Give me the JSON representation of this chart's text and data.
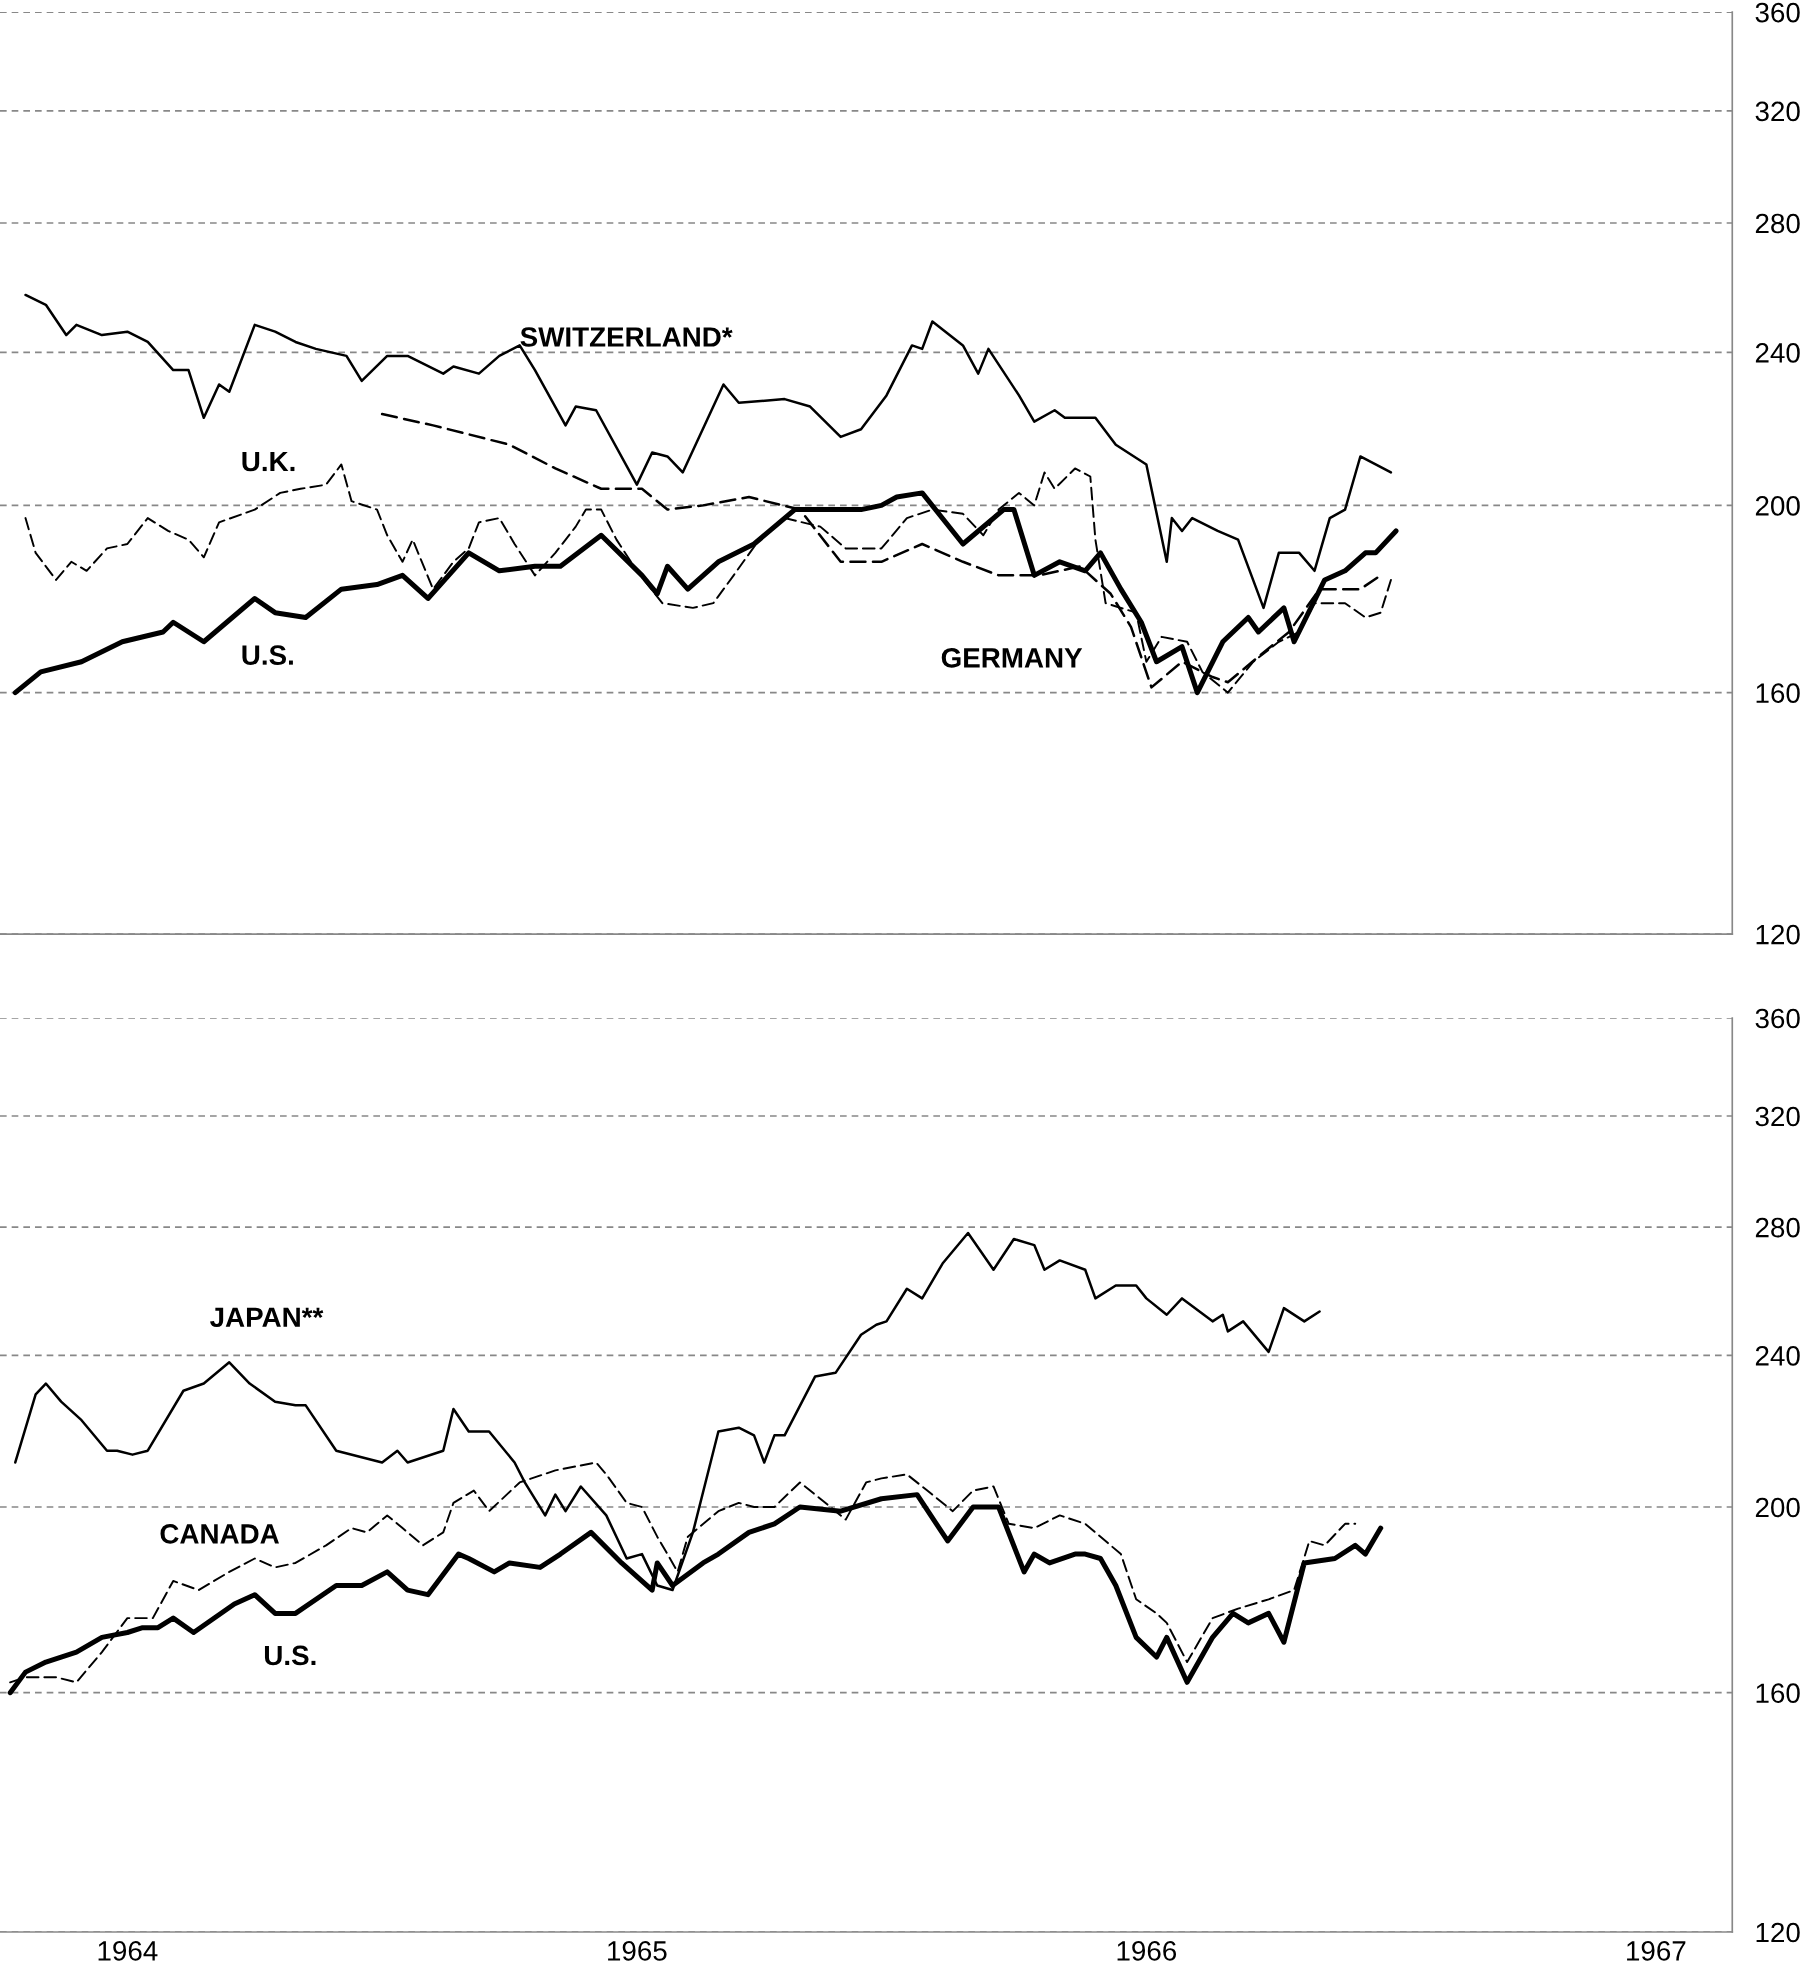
{
  "chart_data": [
    {
      "type": "line",
      "log": "y",
      "grid": "y",
      "tick_labels": "y",
      "xlim": [
        1963.75,
        1967.15
      ],
      "xticks": [
        1964,
        1965,
        1966,
        1967
      ],
      "ylim": [
        120,
        360
      ],
      "yticks": [
        120,
        160,
        200,
        240,
        280,
        320,
        360
      ],
      "series": [
        {
          "name": "SWITZERLAND*",
          "color": "#000000",
          "line_style": "solid",
          "x": [
            1963.8,
            1963.84,
            1963.88,
            1963.9,
            1963.95,
            1964.0,
            1964.04,
            1964.09,
            1964.12,
            1964.15,
            1964.18,
            1964.2,
            1964.25,
            1964.29,
            1964.33,
            1964.37,
            1964.43,
            1964.46,
            1964.51,
            1964.55,
            1964.62,
            1964.64,
            1964.69,
            1964.73,
            1964.77,
            1964.8,
            1964.86,
            1964.88,
            1964.92,
            1965.0,
            1965.03,
            1965.06,
            1965.09,
            1965.17,
            1965.2,
            1965.29,
            1965.34,
            1965.4,
            1965.44,
            1965.49,
            1965.54,
            1965.56,
            1965.58,
            1965.64,
            1965.67,
            1965.69,
            1965.75,
            1965.78,
            1965.82,
            1965.84,
            1965.9,
            1965.94,
            1966.0,
            1966.04,
            1966.05,
            1966.07,
            1966.09,
            1966.14,
            1966.18,
            1966.23,
            1966.26,
            1966.3,
            1966.33,
            1966.36,
            1966.39,
            1966.42,
            1966.45,
            1966.48
          ],
          "values": [
            257,
            254,
            245,
            248,
            245,
            246,
            243,
            235,
            235,
            222,
            231,
            229,
            248,
            246,
            243,
            241,
            239,
            232,
            239,
            239,
            234,
            236,
            234,
            239,
            242,
            235,
            220,
            225,
            224,
            205,
            213,
            212,
            208,
            231,
            226,
            227,
            225,
            217,
            219,
            228,
            242,
            241,
            249,
            242,
            234,
            241,
            228,
            221,
            224,
            222,
            222,
            215,
            210,
            187,
            197,
            194,
            197,
            194,
            192,
            177,
            189,
            189,
            185,
            197,
            199,
            212,
            210,
            208
          ]
        },
        {
          "name": "U.K.",
          "color": "#000000",
          "line_style": "dashed",
          "x": [
            1963.8,
            1963.82,
            1963.86,
            1963.89,
            1963.92,
            1963.96,
            1964.0,
            1964.04,
            1964.08,
            1964.12,
            1964.15,
            1964.18,
            1964.25,
            1964.3,
            1964.34,
            1964.39,
            1964.42,
            1964.44,
            1964.49,
            1964.51,
            1964.54,
            1964.56,
            1964.6,
            1964.64,
            1964.67,
            1964.69,
            1964.73,
            1964.76,
            1964.8,
            1964.84,
            1964.88,
            1964.9,
            1964.93,
            1964.96,
            1965.0,
            1965.05,
            1965.11,
            1965.15,
            1965.19,
            1965.24,
            1965.29,
            1965.36,
            1965.41,
            1965.48,
            1965.53,
            1965.58,
            1965.64,
            1965.68,
            1965.71,
            1965.75,
            1965.78,
            1965.8,
            1965.82,
            1965.86,
            1965.89,
            1965.9,
            1965.92,
            1965.98,
            1966.0,
            1966.03,
            1966.08,
            1966.11,
            1966.16,
            1966.21,
            1966.26,
            1966.3,
            1966.33,
            1966.39,
            1966.43,
            1966.46,
            1966.48
          ],
          "values": [
            197,
            189,
            183,
            187,
            185,
            190,
            191,
            197,
            194,
            192,
            188,
            196,
            199,
            203,
            204,
            205,
            210,
            201,
            199,
            193,
            187,
            192,
            181,
            187,
            190,
            196,
            197,
            191,
            184,
            189,
            195,
            199,
            199,
            192,
            185,
            178,
            177,
            178,
            184,
            192,
            197,
            195,
            190,
            190,
            197,
            199,
            198,
            193,
            199,
            203,
            200,
            208,
            204,
            209,
            207,
            192,
            178,
            176,
            166,
            171,
            170,
            164,
            160,
            166,
            170,
            172,
            178,
            178,
            175,
            176,
            183
          ]
        },
        {
          "name": "U.S.",
          "color": "#000000",
          "line_style": "solid",
          "x": [
            1963.78,
            1963.83,
            1963.91,
            1963.99,
            1964.07,
            1964.09,
            1964.15,
            1964.25,
            1964.29,
            1964.35,
            1964.42,
            1964.49,
            1964.54,
            1964.59,
            1964.67,
            1964.73,
            1964.8,
            1964.85,
            1964.93,
            1965.01,
            1965.04,
            1965.06,
            1965.1,
            1965.16,
            1965.23,
            1965.31,
            1965.37,
            1965.44,
            1965.48,
            1965.51,
            1965.56,
            1965.64,
            1965.72,
            1965.74,
            1965.78,
            1965.83,
            1965.88,
            1965.91,
            1965.95,
            1965.99,
            1966.02,
            1966.07,
            1966.1,
            1966.15,
            1966.2,
            1966.22,
            1966.27,
            1966.29,
            1966.35,
            1966.39,
            1966.43,
            1966.45,
            1966.49
          ],
          "values": [
            160,
            164,
            166,
            170,
            172,
            174,
            170,
            179,
            176,
            175,
            181,
            182,
            184,
            179,
            189,
            185,
            186,
            186,
            193,
            184,
            180,
            186,
            181,
            187,
            191,
            199,
            199,
            199,
            200,
            202,
            203,
            191,
            199,
            199,
            184,
            187,
            185,
            189,
            181,
            174,
            166,
            169,
            160,
            170,
            175,
            172,
            177,
            170,
            183,
            185,
            189,
            189,
            194
          ]
        },
        {
          "name": "GERMANY",
          "color": "#000000",
          "line_style": "dashed",
          "x": [
            1964.5,
            1964.6,
            1964.75,
            1964.84,
            1964.93,
            1965.01,
            1965.06,
            1965.13,
            1965.22,
            1965.32,
            1965.4,
            1965.48,
            1965.56,
            1965.64,
            1965.71,
            1965.79,
            1965.87,
            1965.93,
            1965.97,
            1966.01,
            1966.07,
            1966.13,
            1966.16,
            1966.22,
            1966.28,
            1966.34,
            1966.42,
            1966.46
          ],
          "values": [
            223,
            220,
            215,
            209,
            204,
            204,
            199,
            200,
            202,
            199,
            187,
            187,
            191,
            187,
            184,
            184,
            186,
            180,
            173,
            161,
            166,
            163,
            162,
            167,
            172,
            181,
            181,
            184
          ]
        }
      ]
    },
    {
      "type": "line",
      "log": "y",
      "grid": "y",
      "xlim": [
        1963.75,
        1967.15
      ],
      "xticks": [
        1964,
        1965,
        1966,
        1967
      ],
      "ylim": [
        120,
        360
      ],
      "yticks": [
        120,
        160,
        200,
        240,
        280,
        320,
        360
      ],
      "series": [
        {
          "name": "JAPAN**",
          "color": "#000000",
          "line_style": "solid",
          "x": [
            1963.78,
            1963.82,
            1963.84,
            1963.87,
            1963.91,
            1963.96,
            1963.98,
            1964.01,
            1964.04,
            1964.11,
            1964.15,
            1964.2,
            1964.24,
            1964.29,
            1964.33,
            1964.35,
            1964.41,
            1964.5,
            1964.53,
            1964.55,
            1964.62,
            1964.64,
            1964.67,
            1964.71,
            1964.76,
            1964.78,
            1964.82,
            1964.84,
            1964.86,
            1964.89,
            1964.94,
            1964.98,
            1965.01,
            1965.04,
            1965.07,
            1965.11,
            1965.16,
            1965.2,
            1965.23,
            1965.25,
            1965.27,
            1965.29,
            1965.35,
            1965.39,
            1965.44,
            1965.47,
            1965.49,
            1965.53,
            1965.56,
            1965.6,
            1965.65,
            1965.7,
            1965.74,
            1965.78,
            1965.8,
            1965.83,
            1965.88,
            1965.9,
            1965.94,
            1965.98,
            1966.0,
            1966.04,
            1966.07,
            1966.13,
            1966.15,
            1966.16,
            1966.19,
            1966.24,
            1966.27,
            1966.31,
            1966.34
          ],
          "values": [
            211,
            229,
            232,
            227,
            222,
            214,
            214,
            213,
            214,
            230,
            232,
            238,
            232,
            227,
            226,
            226,
            214,
            211,
            214,
            211,
            214,
            225,
            219,
            219,
            211,
            206,
            198,
            203,
            199,
            205,
            198,
            188,
            189,
            182,
            181,
            194,
            219,
            220,
            218,
            211,
            218,
            218,
            234,
            235,
            246,
            249,
            250,
            260,
            257,
            268,
            278,
            266,
            276,
            274,
            266,
            269,
            266,
            257,
            261,
            261,
            257,
            252,
            257,
            250,
            252,
            247,
            250,
            241,
            254,
            250,
            253
          ]
        },
        {
          "name": "CANADA",
          "color": "#000000",
          "line_style": "dashed",
          "x": [
            1963.77,
            1963.8,
            1963.86,
            1963.9,
            1963.95,
            1964.0,
            1964.05,
            1964.09,
            1964.14,
            1964.2,
            1964.25,
            1964.29,
            1964.33,
            1964.39,
            1964.44,
            1964.47,
            1964.51,
            1964.54,
            1964.58,
            1964.62,
            1964.64,
            1964.68,
            1964.71,
            1964.77,
            1964.84,
            1964.92,
            1964.94,
            1964.98,
            1965.01,
            1965.04,
            1965.06,
            1965.08,
            1965.1,
            1965.16,
            1965.2,
            1965.23,
            1965.27,
            1965.32,
            1965.36,
            1965.41,
            1965.45,
            1965.48,
            1965.53,
            1965.57,
            1965.62,
            1965.66,
            1965.7,
            1965.73,
            1965.78,
            1965.83,
            1965.88,
            1965.95,
            1965.98,
            1966.02,
            1966.04,
            1966.08,
            1966.13,
            1966.18,
            1966.24,
            1966.29,
            1966.32,
            1966.35,
            1966.39,
            1966.41
          ],
          "values": [
            162,
            163,
            163,
            162,
            168,
            175,
            175,
            183,
            181,
            185,
            188,
            186,
            187,
            191,
            195,
            194,
            198,
            195,
            191,
            194,
            201,
            204,
            199,
            206,
            209,
            211,
            208,
            201,
            200,
            193,
            189,
            185,
            193,
            199,
            201,
            200,
            200,
            206,
            202,
            197,
            206,
            207,
            208,
            204,
            199,
            204,
            205,
            196,
            195,
            198,
            196,
            189,
            179,
            176,
            174,
            166,
            175,
            177,
            179,
            181,
            192,
            191,
            196,
            196
          ]
        },
        {
          "name": "U.S.",
          "color": "#000000",
          "line_style": "solid",
          "x": [
            1963.77,
            1963.8,
            1963.84,
            1963.9,
            1963.95,
            1964.0,
            1964.03,
            1964.06,
            1964.09,
            1964.13,
            1964.21,
            1964.25,
            1964.29,
            1964.33,
            1964.41,
            1964.46,
            1964.51,
            1964.55,
            1964.59,
            1964.65,
            1964.67,
            1964.72,
            1964.75,
            1964.81,
            1964.85,
            1964.91,
            1964.97,
            1965.03,
            1965.04,
            1965.07,
            1965.13,
            1965.16,
            1965.22,
            1965.27,
            1965.32,
            1965.4,
            1965.48,
            1965.55,
            1965.61,
            1965.66,
            1965.71,
            1965.76,
            1965.78,
            1965.81,
            1965.86,
            1965.88,
            1965.91,
            1965.94,
            1965.98,
            1966.02,
            1966.04,
            1966.08,
            1966.13,
            1966.17,
            1966.2,
            1966.24,
            1966.27,
            1966.31,
            1966.37,
            1966.41,
            1966.43,
            1966.46
          ],
          "values": [
            160,
            164,
            166,
            168,
            171,
            172,
            173,
            173,
            175,
            172,
            178,
            180,
            176,
            176,
            182,
            182,
            185,
            181,
            180,
            189,
            188,
            185,
            187,
            186,
            189,
            194,
            187,
            181,
            187,
            182,
            187,
            189,
            194,
            196,
            200,
            199,
            202,
            203,
            192,
            200,
            200,
            185,
            189,
            187,
            189,
            189,
            188,
            182,
            171,
            167,
            171,
            162,
            171,
            176,
            174,
            176,
            170,
            187,
            188,
            191,
            189,
            195
          ]
        }
      ]
    }
  ]
}
